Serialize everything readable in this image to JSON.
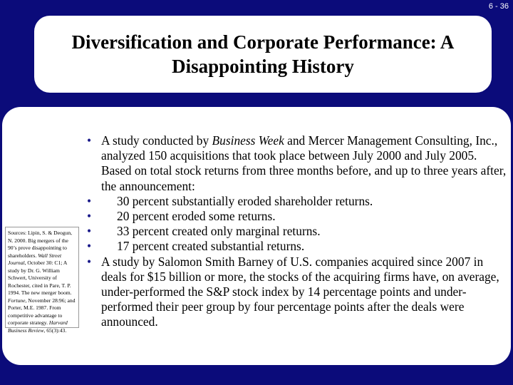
{
  "slide_number": "6 - 36",
  "title": "Diversification and Corporate Performance: A Disappointing History",
  "sources": [
    {
      "text": "Sources: Lipin, S. & Deogun, N. 2000. Big mergers of the 90’s prove disappointing to shareholders. ",
      "italic": false
    },
    {
      "text": "Wall Street Journal",
      "italic": true
    },
    {
      "text": ", October 30: C1; A study by Dr. G. William Schwert, University of Rochester, cited in Pare, T. P. 1994. The new merger boom. ",
      "italic": false
    },
    {
      "text": "Fortune",
      "italic": true
    },
    {
      "text": ", November 28:96; and Porter, M.E. 1987. From competitive advantage to corporate strategy. ",
      "italic": false
    },
    {
      "text": "Harvard Business Review",
      "italic": true
    },
    {
      "text": ", 65(3):43.",
      "italic": false
    }
  ],
  "bullets": [
    {
      "sub": false,
      "parts": [
        {
          "text": "A study conducted by ",
          "italic": false
        },
        {
          "text": "Business Week",
          "italic": true
        },
        {
          "text": " and Mercer Management Consulting, Inc., analyzed 150 acquisitions that took place between July 2000 and July 2005. Based on total stock returns from three months before, and up to three years after, the announcement:",
          "italic": false
        }
      ]
    },
    {
      "sub": true,
      "parts": [
        {
          "text": "30 percent substantially eroded shareholder returns.",
          "italic": false
        }
      ]
    },
    {
      "sub": true,
      "parts": [
        {
          "text": "20 percent eroded some returns.",
          "italic": false
        }
      ]
    },
    {
      "sub": true,
      "parts": [
        {
          "text": "33 percent created only marginal returns.",
          "italic": false
        }
      ]
    },
    {
      "sub": true,
      "parts": [
        {
          "text": "17 percent created substantial returns.",
          "italic": false
        }
      ]
    },
    {
      "sub": false,
      "parts": [
        {
          "text": "A study by Salomon Smith Barney of U.S. companies acquired since 2007 in deals for $15 billion or more, the stocks of the acquiring firms have, on average, under-performed the S&P stock index by 14 percentage points and under-performed their peer group by four percentage points after the deals were announced.",
          "italic": false
        }
      ]
    }
  ]
}
